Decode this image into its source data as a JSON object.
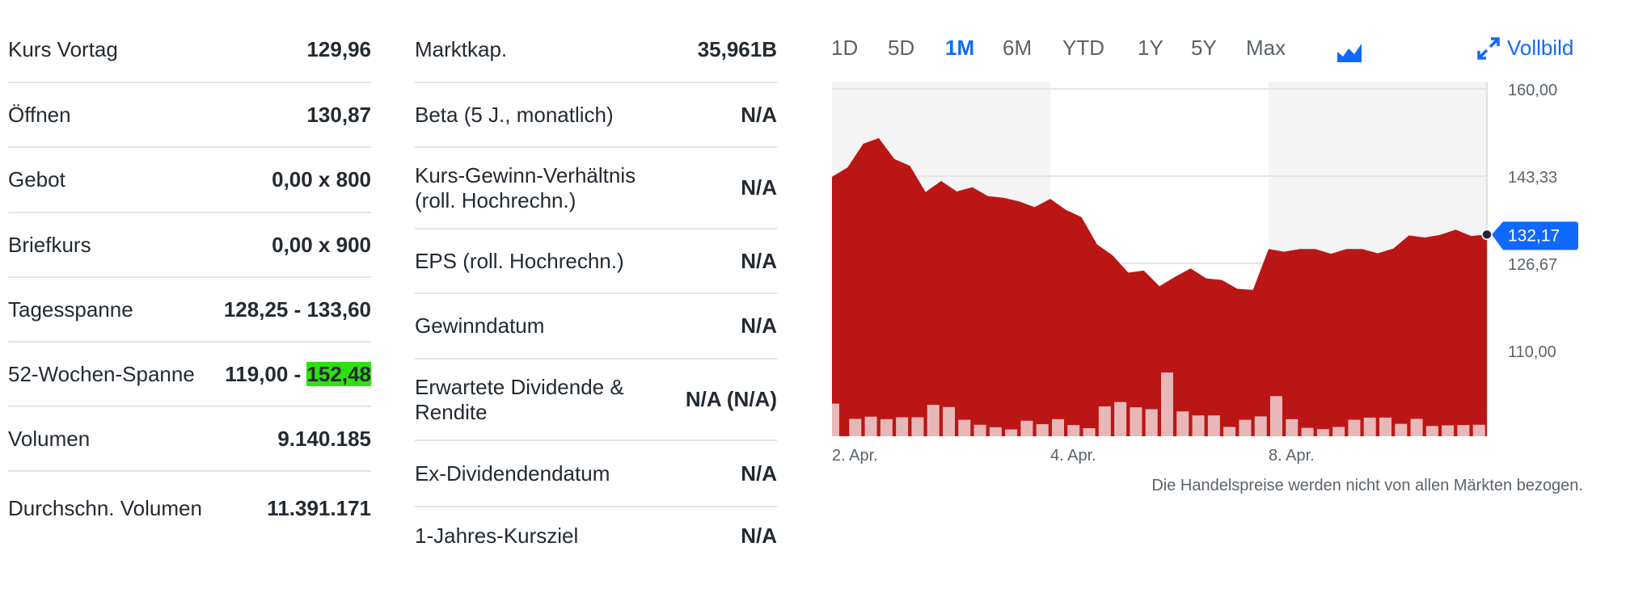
{
  "summary_left": [
    {
      "label": "Kurs Vortag",
      "value": "129,96"
    },
    {
      "label": "Öffnen",
      "value": "130,87"
    },
    {
      "label": "Gebot",
      "value": "0,00 x 800"
    },
    {
      "label": "Briefkurs",
      "value": "0,00 x 900"
    },
    {
      "label": "Tagesspanne",
      "value": "128,25 - 133,60"
    },
    {
      "label": "52-Wochen-Spanne",
      "value_low": "119,00 - ",
      "value_high": "152,48"
    },
    {
      "label": "Volumen",
      "value": "9.140.185"
    },
    {
      "label": "Durchschn. Volumen",
      "value": "11.391.171"
    }
  ],
  "summary_right": [
    {
      "label": "Marktkap.",
      "value": "35,961B"
    },
    {
      "label": "Beta (5 J., monatlich)",
      "value": "N/A"
    },
    {
      "label": "Kurs-Gewinn-Verhältnis (roll. Hochrechn.)",
      "value": "N/A"
    },
    {
      "label": "EPS (roll. Hochrechn.)",
      "value": "N/A"
    },
    {
      "label": "Gewinndatum",
      "value": "N/A"
    },
    {
      "label": "Erwartete Dividende & Rendite",
      "value": "N/A (N/A)"
    },
    {
      "label": "Ex-Dividendendatum",
      "value": "N/A"
    },
    {
      "label": "1-Jahres-Kursziel",
      "value": "N/A"
    }
  ],
  "periods": [
    "1D",
    "5D",
    "1M",
    "6M",
    "YTD",
    "1Y",
    "5Y",
    "Max"
  ],
  "active_period": "1M",
  "chart_type_icon": "mountain-chart-icon",
  "fullscreen": {
    "label": "Vollbild",
    "icon": "expand-arrows-icon"
  },
  "note": "Die Handelspreise werden nicht von allen Märkten bezogen.",
  "colors": {
    "accent": "#0f69ff",
    "area": "#bb1616",
    "volume": "#e8b8b8",
    "band": "#f4f4f4"
  },
  "chart_data": {
    "type": "area",
    "x_tick_labels": [
      "2. Apr.",
      "4. Apr.",
      "8. Apr."
    ],
    "y_tick_labels": [
      "160,00",
      "143,33",
      "126,67",
      "110,00"
    ],
    "y_ticks": [
      160,
      143.33,
      126.67,
      110
    ],
    "ylim": [
      93.6,
      161.4
    ],
    "grid": true,
    "current_value_label": "132,17",
    "current_value": 132.17,
    "price": [
      143.2,
      145.0,
      149.5,
      150.6,
      146.6,
      145.3,
      140.3,
      142.4,
      140.4,
      141.2,
      139.5,
      139.2,
      138.5,
      137.4,
      139.0,
      136.9,
      135.5,
      130.3,
      128.2,
      124.9,
      125.3,
      122.3,
      124.1,
      125.7,
      123.8,
      123.5,
      121.8,
      121.6,
      129.4,
      128.9,
      129.4,
      129.4,
      128.5,
      129.4,
      129.4,
      128.6,
      129.5,
      132.0,
      131.6,
      132.1,
      133.1,
      131.9,
      132.17
    ],
    "volume_relative": [
      105,
      56,
      63,
      55,
      61,
      61,
      101,
      94,
      53,
      37,
      29,
      22,
      50,
      39,
      55,
      36,
      26,
      96,
      110,
      93,
      87,
      205,
      80,
      67,
      67,
      30,
      53,
      64,
      129,
      55,
      27,
      23,
      30,
      53,
      60,
      60,
      40,
      56,
      33,
      35,
      36,
      37
    ]
  }
}
